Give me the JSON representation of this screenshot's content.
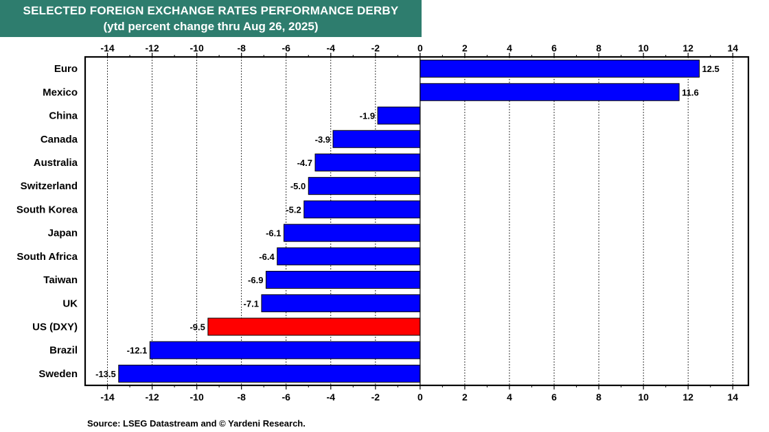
{
  "header": {
    "title": "SELECTED FOREIGN EXCHANGE RATES PERFORMANCE DERBY",
    "subtitle": "(ytd percent change thru Aug 26, 2025)",
    "background_color": "#2E7D6E"
  },
  "footer": {
    "source": "Source: LSEG Datastream and © Yardeni Research."
  },
  "chart_data": {
    "type": "bar",
    "orientation": "horizontal",
    "title": "SELECTED FOREIGN EXCHANGE RATES PERFORMANCE DERBY",
    "subtitle": "(ytd percent change thru Aug 26, 2025)",
    "xlabel": "",
    "ylabel": "",
    "xlim": [
      -15,
      14.7
    ],
    "ticks": [
      -14,
      -12,
      -10,
      -8,
      -6,
      -4,
      -2,
      0,
      2,
      4,
      6,
      8,
      10,
      12,
      14
    ],
    "tick_labels": [
      "-14",
      "-12",
      "-10",
      "-8",
      "-6",
      "-4",
      "-2",
      "0",
      "2",
      "4",
      "6",
      "8",
      "10",
      "12",
      "14"
    ],
    "tick_axes": "top-and-bottom",
    "grid": "vertical-dashed",
    "legend": "none",
    "categories": [
      "Euro",
      "Mexico",
      "China",
      "Canada",
      "Australia",
      "Switzerland",
      "South Korea",
      "Japan",
      "South Africa",
      "Taiwan",
      "UK",
      "US (DXY)",
      "Brazil",
      "Sweden"
    ],
    "values": [
      12.5,
      11.6,
      -1.9,
      -3.9,
      -4.7,
      -5.0,
      -5.2,
      -6.1,
      -6.4,
      -6.9,
      -7.1,
      -9.5,
      -12.1,
      -13.5
    ],
    "value_labels": [
      "12.5",
      "11.6",
      "-1.9",
      "-3.9",
      "-4.7",
      "-5.0",
      "-5.2",
      "-6.1",
      "-6.4",
      "-6.9",
      "-7.1",
      "-9.5",
      "-12.1",
      "-13.5"
    ],
    "bar_color": "#0000FF",
    "highlight_category": "US (DXY)",
    "highlight_color": "#FF0000"
  }
}
